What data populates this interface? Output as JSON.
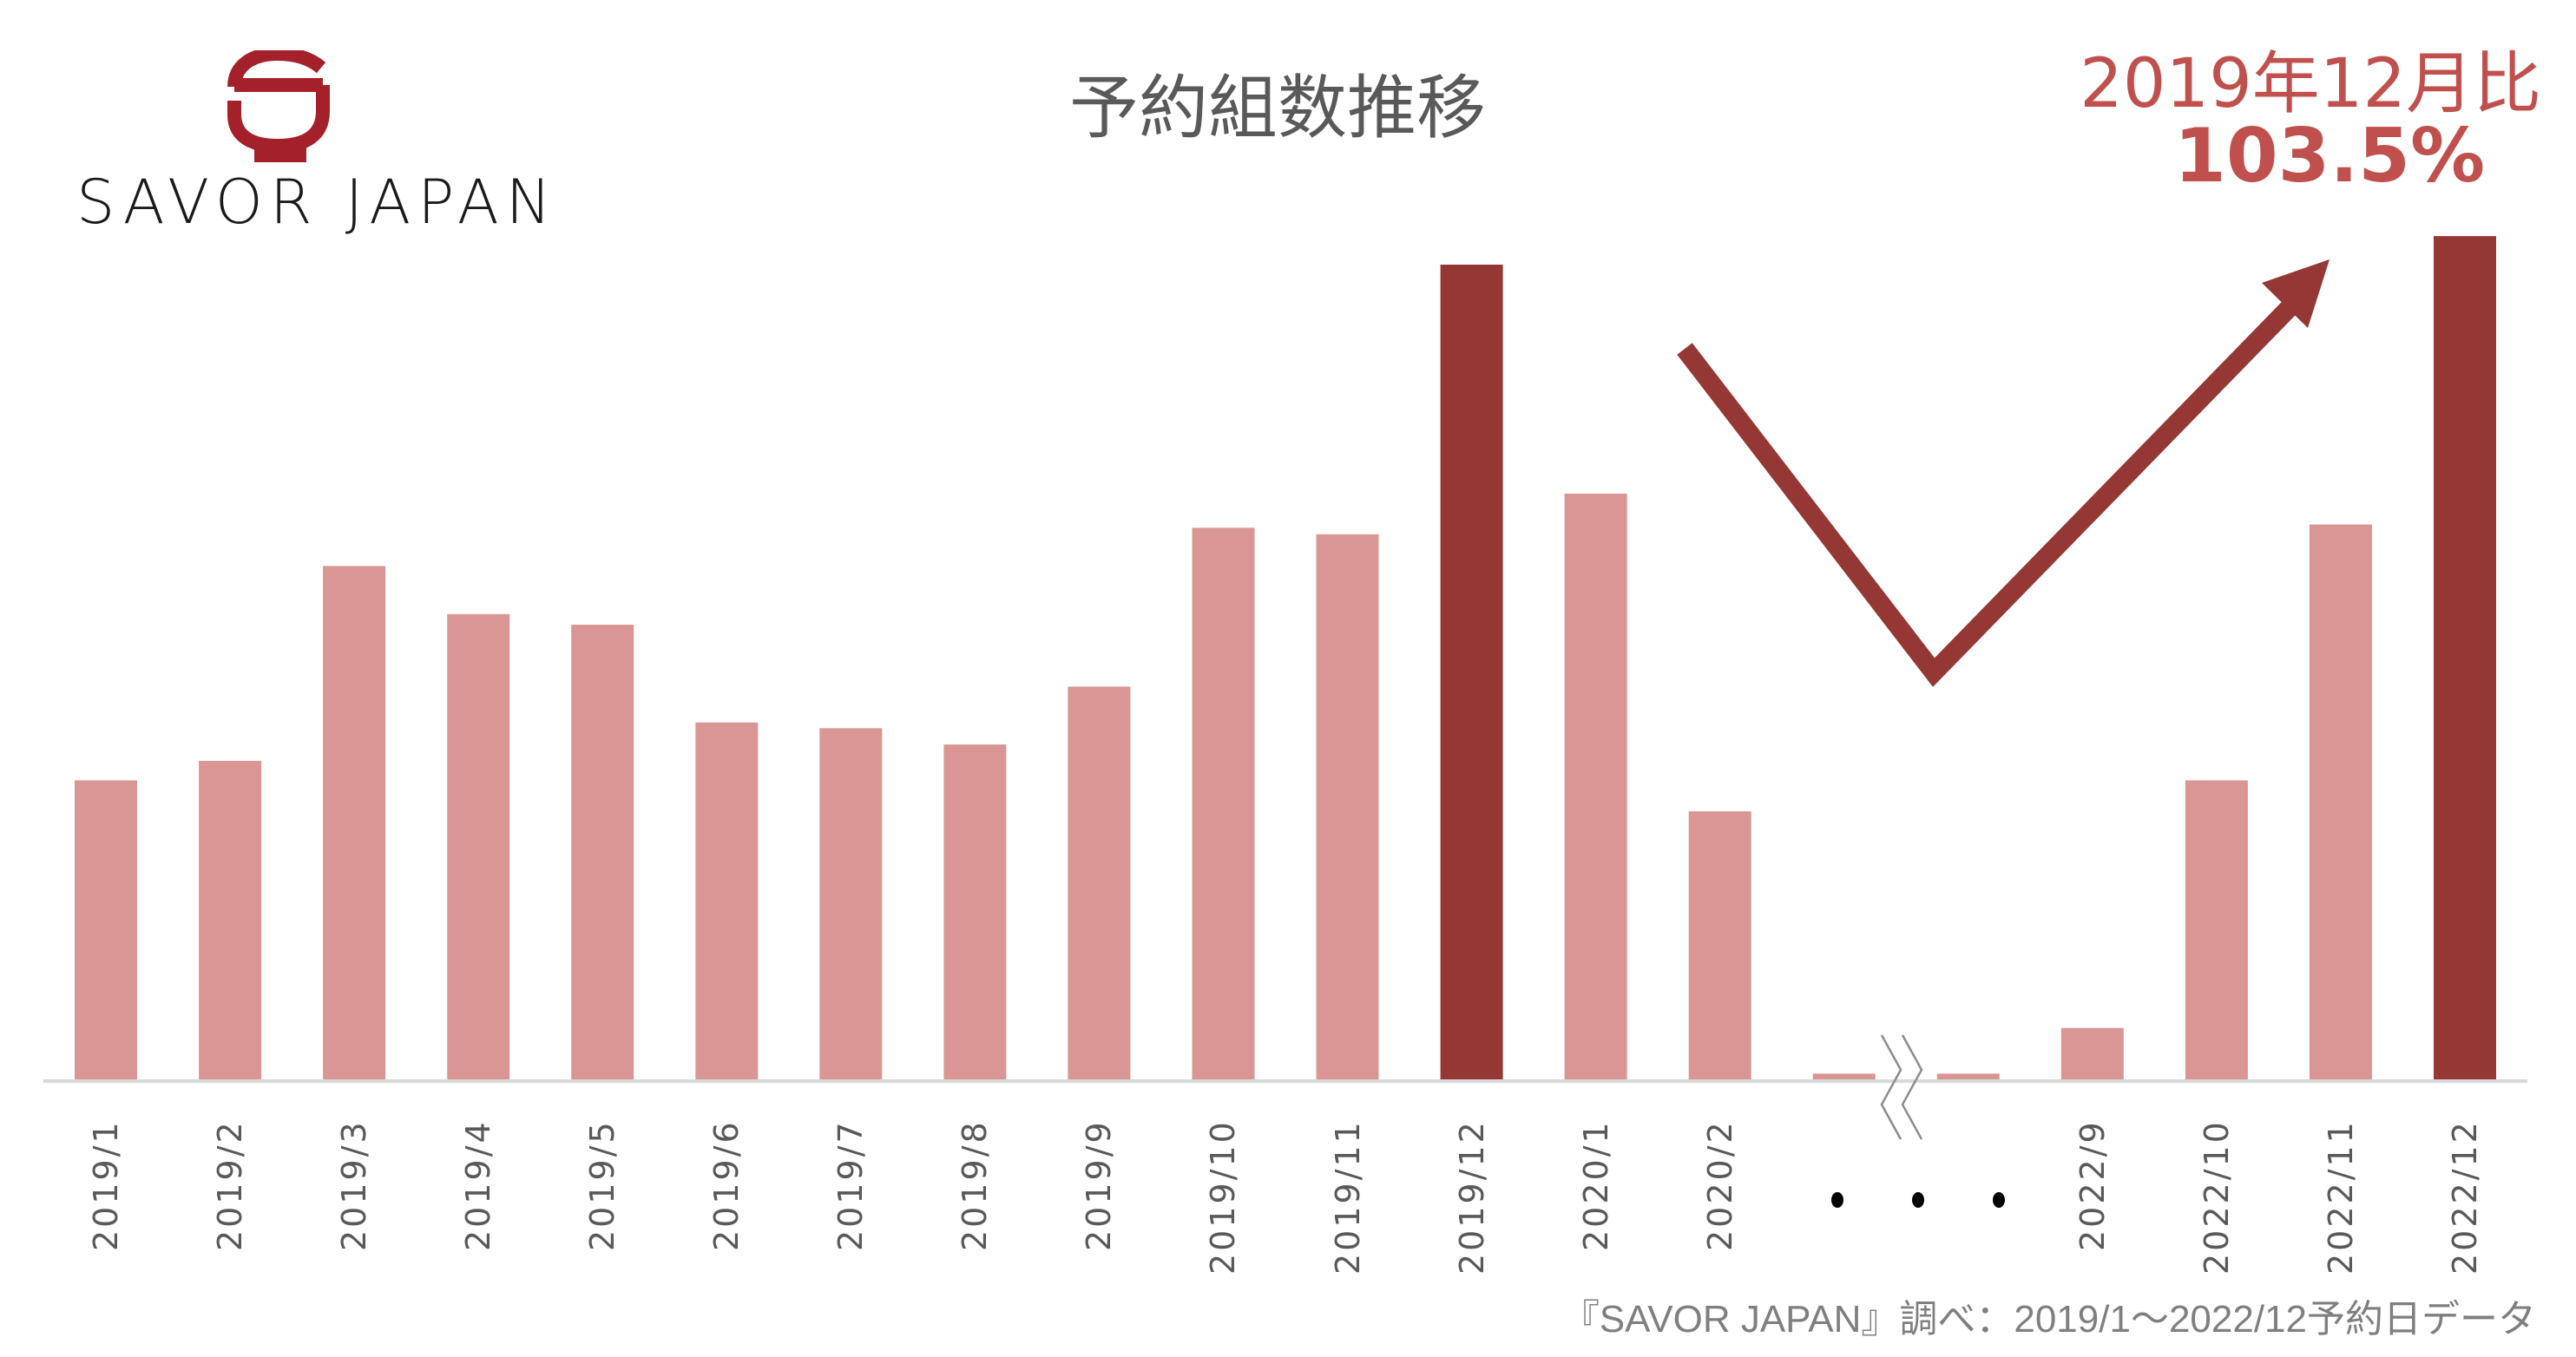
{
  "logo": {
    "brand_text": "SAVOR JAPAN",
    "brand_color": "#A4202A"
  },
  "title": "予約組数推移",
  "comparison": {
    "label": "2019年12月比",
    "value": "103.5%",
    "color": "#C0504D"
  },
  "footer": {
    "source": "『SAVOR JAPAN』調べ：2019/1～2022/12予約日データ"
  },
  "break_indicator": "・・・",
  "colors": {
    "bar_normal": "#D99694",
    "bar_highlight": "#953735",
    "axis": "#D9D9D9",
    "label": "#595959",
    "arrow": "#953735"
  },
  "chart_data": {
    "type": "bar",
    "title": "予約組数推移",
    "xlabel": "",
    "ylabel": "",
    "units": "index (2019/12 = 100), estimated from bar heights; no y-axis shown",
    "grid": false,
    "legend": null,
    "categories": [
      "2019/1",
      "2019/2",
      "2019/3",
      "2019/4",
      "2019/5",
      "2019/6",
      "2019/7",
      "2019/8",
      "2019/9",
      "2019/10",
      "2019/11",
      "2019/12",
      "2020/1",
      "2020/2",
      "",
      "",
      "2022/9",
      "2022/10",
      "2022/11",
      "2022/12"
    ],
    "values": [
      36.7,
      39.1,
      63.0,
      57.1,
      55.8,
      43.8,
      43.1,
      41.1,
      48.2,
      67.7,
      66.9,
      100.0,
      71.9,
      32.9,
      0.7,
      0.7,
      6.3,
      36.7,
      68.1,
      103.5
    ],
    "highlighted": [
      "2019/12",
      "2022/12"
    ],
    "axis_break_between": [
      14,
      15
    ],
    "annotations": [
      {
        "text": "2019年12月比",
        "position": "top-right"
      },
      {
        "text": "103.5%",
        "position": "top-right"
      },
      {
        "type": "arrow",
        "shape": "V-shape down then up",
        "meaning": "decline then recovery"
      }
    ],
    "ylim": [
      0,
      105
    ]
  }
}
